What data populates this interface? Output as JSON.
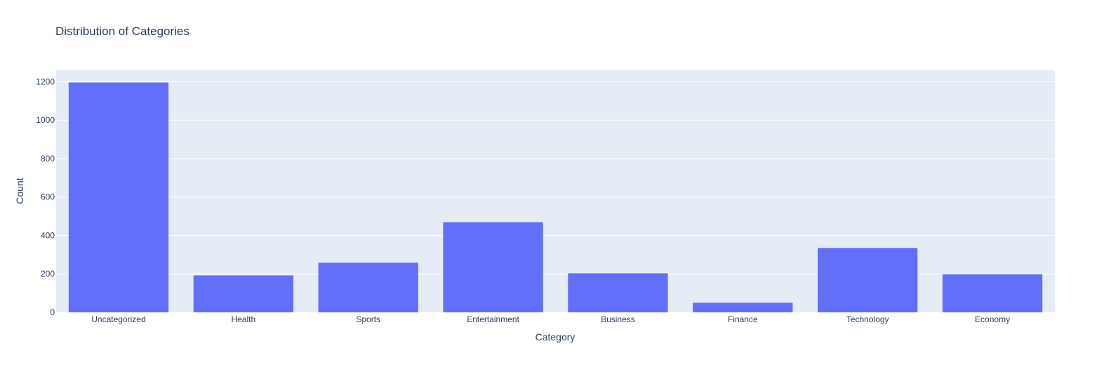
{
  "chart_data": {
    "type": "bar",
    "title": "Distribution of Categories",
    "xlabel": "Category",
    "ylabel": "Count",
    "categories": [
      "Uncategorized",
      "Health",
      "Sports",
      "Entertainment",
      "Business",
      "Finance",
      "Technology",
      "Economy"
    ],
    "values": [
      1196,
      192,
      258,
      469,
      203,
      50,
      335,
      198
    ],
    "ylim": [
      0,
      1260
    ],
    "yticks": [
      0,
      200,
      400,
      600,
      800,
      1000,
      1200
    ],
    "grid": true,
    "legend": "none"
  },
  "colors": {
    "bar": "#636efa",
    "plot_background": "#e5ecf6",
    "grid": "#ffffff",
    "text": "#2a3f5f"
  }
}
